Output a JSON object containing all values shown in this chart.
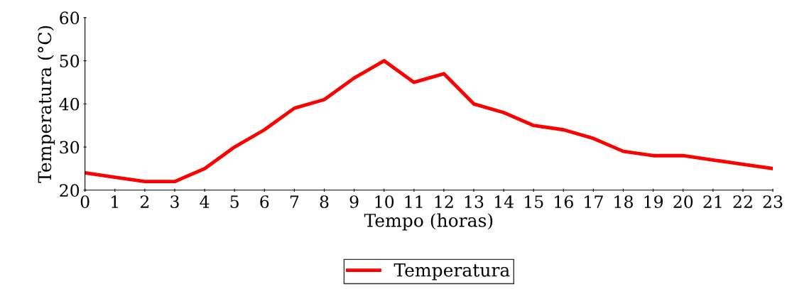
{
  "chart_data": {
    "type": "line",
    "xlabel": "Tempo (horas)",
    "ylabel": "Temperatura (°C)",
    "x": [
      0,
      1,
      2,
      3,
      4,
      5,
      6,
      7,
      8,
      9,
      10,
      11,
      12,
      13,
      14,
      15,
      16,
      17,
      18,
      19,
      20,
      21,
      22,
      23
    ],
    "series": [
      {
        "name": "Temperatura",
        "color": "#ff0000",
        "values": [
          24,
          23,
          22,
          22,
          25,
          30,
          34,
          39,
          41,
          46,
          50,
          45,
          47,
          40,
          38,
          35,
          34,
          32,
          29,
          28,
          28,
          27,
          26,
          25
        ]
      }
    ],
    "xlim": [
      0,
      23
    ],
    "xticks": [
      0,
      1,
      2,
      3,
      4,
      5,
      6,
      7,
      8,
      9,
      10,
      11,
      12,
      13,
      14,
      15,
      16,
      17,
      18,
      19,
      20,
      21,
      22,
      23
    ],
    "ylim": [
      20,
      60
    ],
    "yticks": [
      20,
      30,
      40,
      50,
      60
    ],
    "grid": false,
    "legend": "bottom",
    "marker": "none",
    "line_style": "solid"
  }
}
